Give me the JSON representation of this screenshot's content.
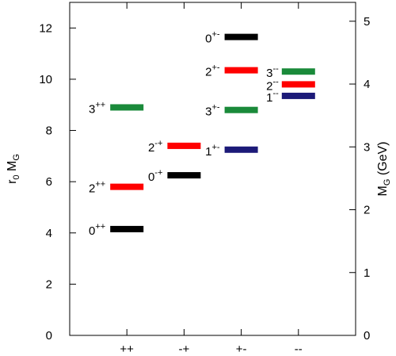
{
  "chart_data": {
    "type": "scatter",
    "xlabel": "",
    "ylabel": "r0 MG",
    "ylabel_parts": {
      "base": "r",
      "sub1": "0",
      "mid": " M",
      "sub2": "G"
    },
    "y2label_parts": {
      "base": "M",
      "sub": "G",
      "unit": " (GeV)"
    },
    "ylim": [
      0,
      13
    ],
    "y2lim": [
      0,
      5.3
    ],
    "grid": false,
    "categories": [
      "++",
      "-+",
      "+-",
      "--"
    ],
    "y_ticks": [
      "0",
      "2",
      "4",
      "6",
      "8",
      "10",
      "12"
    ],
    "y2_ticks": [
      "0",
      "1",
      "2",
      "3",
      "4",
      "5"
    ],
    "levels": [
      {
        "category": "++",
        "j": "0",
        "pc": "++",
        "value": 4.15,
        "color": "#000000"
      },
      {
        "category": "++",
        "j": "2",
        "pc": "++",
        "value": 5.8,
        "color": "#ff0000"
      },
      {
        "category": "++",
        "j": "3",
        "pc": "++",
        "value": 8.9,
        "color": "#1a8a3a"
      },
      {
        "category": "-+",
        "j": "0",
        "pc": "-+",
        "value": 6.25,
        "color": "#000000"
      },
      {
        "category": "-+",
        "j": "2",
        "pc": "-+",
        "value": 7.4,
        "color": "#ff0000"
      },
      {
        "category": "+-",
        "j": "1",
        "pc": "+-",
        "value": 7.25,
        "color": "#1c1a78"
      },
      {
        "category": "+-",
        "j": "3",
        "pc": "+-",
        "value": 8.8,
        "color": "#1a8a3a"
      },
      {
        "category": "+-",
        "j": "2",
        "pc": "+-",
        "value": 10.35,
        "color": "#ff0000"
      },
      {
        "category": "+-",
        "j": "0",
        "pc": "+-",
        "value": 11.65,
        "color": "#000000"
      },
      {
        "category": "--",
        "j": "1",
        "pc": "--",
        "value": 9.35,
        "color": "#1c1a78"
      },
      {
        "category": "--",
        "j": "2",
        "pc": "--",
        "value": 9.8,
        "color": "#ff0000"
      },
      {
        "category": "--",
        "j": "3",
        "pc": "--",
        "value": 10.3,
        "color": "#1a8a3a"
      }
    ]
  }
}
